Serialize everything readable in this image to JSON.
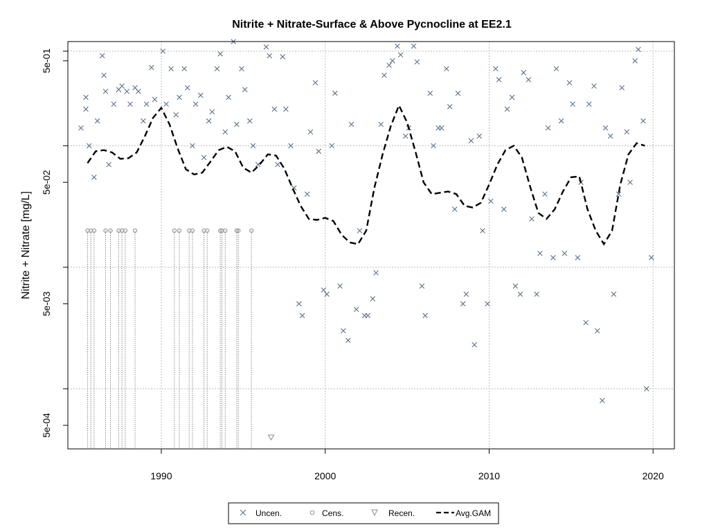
{
  "chart_data": {
    "type": "scatter",
    "title": "Nitrite + Nitrate-Surface & Above Pycnocline at EE2.1",
    "xlabel": "",
    "ylabel": "Nitrite + Nitrate [mg/L]",
    "y_scale": "log10",
    "xlim": [
      1984.3,
      2021.3
    ],
    "ylim": [
      0.00032,
      0.72
    ],
    "x_ticks": [
      1990,
      2000,
      2010,
      2020
    ],
    "x_tick_labels": [
      "1990",
      "2000",
      "2010",
      "2020"
    ],
    "y_ticks": [
      0.0005,
      0.005,
      0.05,
      0.5
    ],
    "y_tick_labels": [
      "5e-04",
      "5e-03",
      "5e-02",
      "5e-01"
    ],
    "grid": true,
    "grid_y": [
      0.001,
      0.01,
      0.1,
      0.6
    ],
    "grid_x": [
      1990,
      2000,
      2010,
      2020
    ],
    "legend_position": "bottom",
    "colors": {
      "uncensored": "#5a6f8a",
      "censored": "#8c8c8c",
      "gam": "#000000",
      "grid": "#bebebe"
    },
    "series": [
      {
        "name": "Uncen.",
        "marker": "x",
        "points": [
          [
            1985.1,
            0.14
          ],
          [
            1985.4,
            0.25
          ],
          [
            1985.4,
            0.2
          ],
          [
            1985.6,
            0.1
          ],
          [
            1985.9,
            0.055
          ],
          [
            1986.1,
            0.16
          ],
          [
            1986.4,
            0.55
          ],
          [
            1986.5,
            0.38
          ],
          [
            1986.6,
            0.28
          ],
          [
            1986.8,
            0.07
          ],
          [
            1987.1,
            0.22
          ],
          [
            1987.4,
            0.29
          ],
          [
            1987.6,
            0.31
          ],
          [
            1987.9,
            0.28
          ],
          [
            1988.1,
            0.22
          ],
          [
            1988.4,
            0.3
          ],
          [
            1988.6,
            0.28
          ],
          [
            1988.9,
            0.16
          ],
          [
            1989.1,
            0.22
          ],
          [
            1989.4,
            0.44
          ],
          [
            1989.6,
            0.24
          ],
          [
            1990.1,
            0.6
          ],
          [
            1990.3,
            0.22
          ],
          [
            1990.6,
            0.43
          ],
          [
            1990.9,
            0.18
          ],
          [
            1991.1,
            0.25
          ],
          [
            1991.4,
            0.43
          ],
          [
            1991.6,
            0.3
          ],
          [
            1991.9,
            0.1
          ],
          [
            1992.1,
            0.22
          ],
          [
            1992.4,
            0.26
          ],
          [
            1992.6,
            0.08
          ],
          [
            1992.9,
            0.16
          ],
          [
            1993.1,
            0.19
          ],
          [
            1993.4,
            0.43
          ],
          [
            1993.6,
            0.57
          ],
          [
            1993.9,
            0.13
          ],
          [
            1994.1,
            0.25
          ],
          [
            1994.4,
            0.72
          ],
          [
            1994.6,
            0.15
          ],
          [
            1994.9,
            0.43
          ],
          [
            1995.1,
            0.29
          ],
          [
            1995.4,
            0.16
          ],
          [
            1995.6,
            0.1
          ],
          [
            1995.9,
            0.07
          ],
          [
            1996.4,
            0.65
          ],
          [
            1996.6,
            0.55
          ],
          [
            1996.9,
            0.2
          ],
          [
            1997.1,
            0.07
          ],
          [
            1997.4,
            0.54
          ],
          [
            1997.6,
            0.2
          ],
          [
            1997.9,
            0.1
          ],
          [
            1998.1,
            0.045
          ],
          [
            1998.4,
            0.005
          ],
          [
            1998.6,
            0.004
          ],
          [
            1998.9,
            0.04
          ],
          [
            1999.1,
            0.13
          ],
          [
            1999.4,
            0.33
          ],
          [
            1999.6,
            0.09
          ],
          [
            1999.9,
            0.0065
          ],
          [
            2000.1,
            0.006
          ],
          [
            2000.4,
            0.1
          ],
          [
            2000.6,
            0.27
          ],
          [
            2000.9,
            0.007
          ],
          [
            2001.1,
            0.003
          ],
          [
            2001.4,
            0.0025
          ],
          [
            2001.6,
            0.15
          ],
          [
            2001.9,
            0.0045
          ],
          [
            2002.1,
            0.02
          ],
          [
            2002.4,
            0.004
          ],
          [
            2002.6,
            0.004
          ],
          [
            2002.9,
            0.0055
          ],
          [
            2003.1,
            0.009
          ],
          [
            2003.4,
            0.15
          ],
          [
            2003.6,
            0.38
          ],
          [
            2003.9,
            0.46
          ],
          [
            2004.1,
            0.5
          ],
          [
            2004.4,
            0.66
          ],
          [
            2004.6,
            0.56
          ],
          [
            2004.9,
            0.12
          ],
          [
            2005.1,
            0.14
          ],
          [
            2005.4,
            0.66
          ],
          [
            2005.6,
            0.49
          ],
          [
            2005.9,
            0.007
          ],
          [
            2006.1,
            0.004
          ],
          [
            2006.4,
            0.27
          ],
          [
            2006.6,
            0.1
          ],
          [
            2006.9,
            0.14
          ],
          [
            2007.1,
            0.14
          ],
          [
            2007.4,
            0.43
          ],
          [
            2007.6,
            0.21
          ],
          [
            2007.9,
            0.03
          ],
          [
            2008.1,
            0.27
          ],
          [
            2008.4,
            0.005
          ],
          [
            2008.6,
            0.006
          ],
          [
            2008.9,
            0.11
          ],
          [
            2009.1,
            0.0023
          ],
          [
            2009.4,
            0.12
          ],
          [
            2009.6,
            0.02
          ],
          [
            2009.9,
            0.005
          ],
          [
            2010.1,
            0.035
          ],
          [
            2010.4,
            0.43
          ],
          [
            2010.6,
            0.35
          ],
          [
            2010.9,
            0.03
          ],
          [
            2011.1,
            0.2
          ],
          [
            2011.4,
            0.25
          ],
          [
            2011.6,
            0.007
          ],
          [
            2011.9,
            0.006
          ],
          [
            2012.1,
            0.4
          ],
          [
            2012.4,
            0.35
          ],
          [
            2012.6,
            0.025
          ],
          [
            2012.9,
            0.006
          ],
          [
            2013.1,
            0.013
          ],
          [
            2013.4,
            0.04
          ],
          [
            2013.6,
            0.14
          ],
          [
            2013.9,
            0.012
          ],
          [
            2014.1,
            0.43
          ],
          [
            2014.4,
            0.16
          ],
          [
            2014.6,
            0.013
          ],
          [
            2014.9,
            0.33
          ],
          [
            2015.1,
            0.22
          ],
          [
            2015.4,
            0.012
          ],
          [
            2015.6,
            0.05
          ],
          [
            2015.9,
            0.0035
          ],
          [
            2016.1,
            0.22
          ],
          [
            2016.4,
            0.31
          ],
          [
            2016.6,
            0.003
          ],
          [
            2016.9,
            0.0008
          ],
          [
            2017.1,
            0.14
          ],
          [
            2017.4,
            0.12
          ],
          [
            2017.6,
            0.006
          ],
          [
            2017.9,
            0.04
          ],
          [
            2018.1,
            0.3
          ],
          [
            2018.4,
            0.13
          ],
          [
            2018.6,
            0.05
          ],
          [
            2018.9,
            0.5
          ],
          [
            2019.1,
            0.62
          ],
          [
            2019.4,
            0.16
          ],
          [
            2019.6,
            0.001
          ],
          [
            2019.9,
            0.012
          ]
        ]
      },
      {
        "name": "Cens.",
        "marker": "o",
        "points": [
          [
            1985.5,
            0.02
          ],
          [
            1985.7,
            0.02
          ],
          [
            1985.9,
            0.02
          ],
          [
            1986.6,
            0.02
          ],
          [
            1986.9,
            0.02
          ],
          [
            1987.4,
            0.02
          ],
          [
            1987.6,
            0.02
          ],
          [
            1987.8,
            0.02
          ],
          [
            1988.4,
            0.02
          ],
          [
            1990.8,
            0.02
          ],
          [
            1991.1,
            0.02
          ],
          [
            1991.7,
            0.02
          ],
          [
            1991.9,
            0.02
          ],
          [
            1992.6,
            0.02
          ],
          [
            1992.8,
            0.02
          ],
          [
            1993.6,
            0.02
          ],
          [
            1993.7,
            0.02
          ],
          [
            1993.9,
            0.02
          ],
          [
            1994.6,
            0.02
          ],
          [
            1994.7,
            0.02
          ],
          [
            1995.5,
            0.02
          ]
        ]
      },
      {
        "name": "Recen.",
        "marker": "triangle-down",
        "points": [
          [
            1996.7,
            0.0004
          ]
        ]
      },
      {
        "name": "Avg.GAM",
        "marker": "dashed-line",
        "points": [
          [
            1985.5,
            0.072
          ],
          [
            1986,
            0.09
          ],
          [
            1986.5,
            0.092
          ],
          [
            1987,
            0.088
          ],
          [
            1987.5,
            0.078
          ],
          [
            1988,
            0.079
          ],
          [
            1988.5,
            0.088
          ],
          [
            1989,
            0.12
          ],
          [
            1989.5,
            0.17
          ],
          [
            1990,
            0.205
          ],
          [
            1990.5,
            0.15
          ],
          [
            1991,
            0.095
          ],
          [
            1991.5,
            0.064
          ],
          [
            1992,
            0.058
          ],
          [
            1992.5,
            0.06
          ],
          [
            1993,
            0.074
          ],
          [
            1993.5,
            0.092
          ],
          [
            1994,
            0.098
          ],
          [
            1994.5,
            0.09
          ],
          [
            1995,
            0.066
          ],
          [
            1995.5,
            0.06
          ],
          [
            1996,
            0.07
          ],
          [
            1996.5,
            0.085
          ],
          [
            1997,
            0.083
          ],
          [
            1997.5,
            0.065
          ],
          [
            1998,
            0.045
          ],
          [
            1998.5,
            0.032
          ],
          [
            1999,
            0.025
          ],
          [
            1999.5,
            0.0245
          ],
          [
            2000,
            0.0255
          ],
          [
            2000.5,
            0.024
          ],
          [
            2001,
            0.0185
          ],
          [
            2001.5,
            0.016
          ],
          [
            2002,
            0.0155
          ],
          [
            2002.5,
            0.02
          ],
          [
            2003,
            0.045
          ],
          [
            2003.5,
            0.085
          ],
          [
            2004,
            0.145
          ],
          [
            2004.5,
            0.215
          ],
          [
            2005,
            0.155
          ],
          [
            2005.5,
            0.09
          ],
          [
            2006,
            0.05
          ],
          [
            2006.5,
            0.04
          ],
          [
            2007,
            0.041
          ],
          [
            2007.5,
            0.042
          ],
          [
            2008,
            0.04
          ],
          [
            2008.5,
            0.032
          ],
          [
            2009,
            0.031
          ],
          [
            2009.5,
            0.034
          ],
          [
            2010,
            0.048
          ],
          [
            2010.5,
            0.07
          ],
          [
            2011,
            0.092
          ],
          [
            2011.5,
            0.1
          ],
          [
            2012,
            0.08
          ],
          [
            2012.5,
            0.046
          ],
          [
            2013,
            0.028
          ],
          [
            2013.5,
            0.025
          ],
          [
            2014,
            0.03
          ],
          [
            2014.5,
            0.042
          ],
          [
            2015,
            0.055
          ],
          [
            2015.5,
            0.056
          ],
          [
            2016,
            0.03
          ],
          [
            2016.5,
            0.02
          ],
          [
            2017,
            0.0155
          ],
          [
            2017.5,
            0.02
          ],
          [
            2018,
            0.048
          ],
          [
            2018.5,
            0.085
          ],
          [
            2019,
            0.105
          ],
          [
            2019.5,
            0.1
          ]
        ]
      }
    ]
  }
}
